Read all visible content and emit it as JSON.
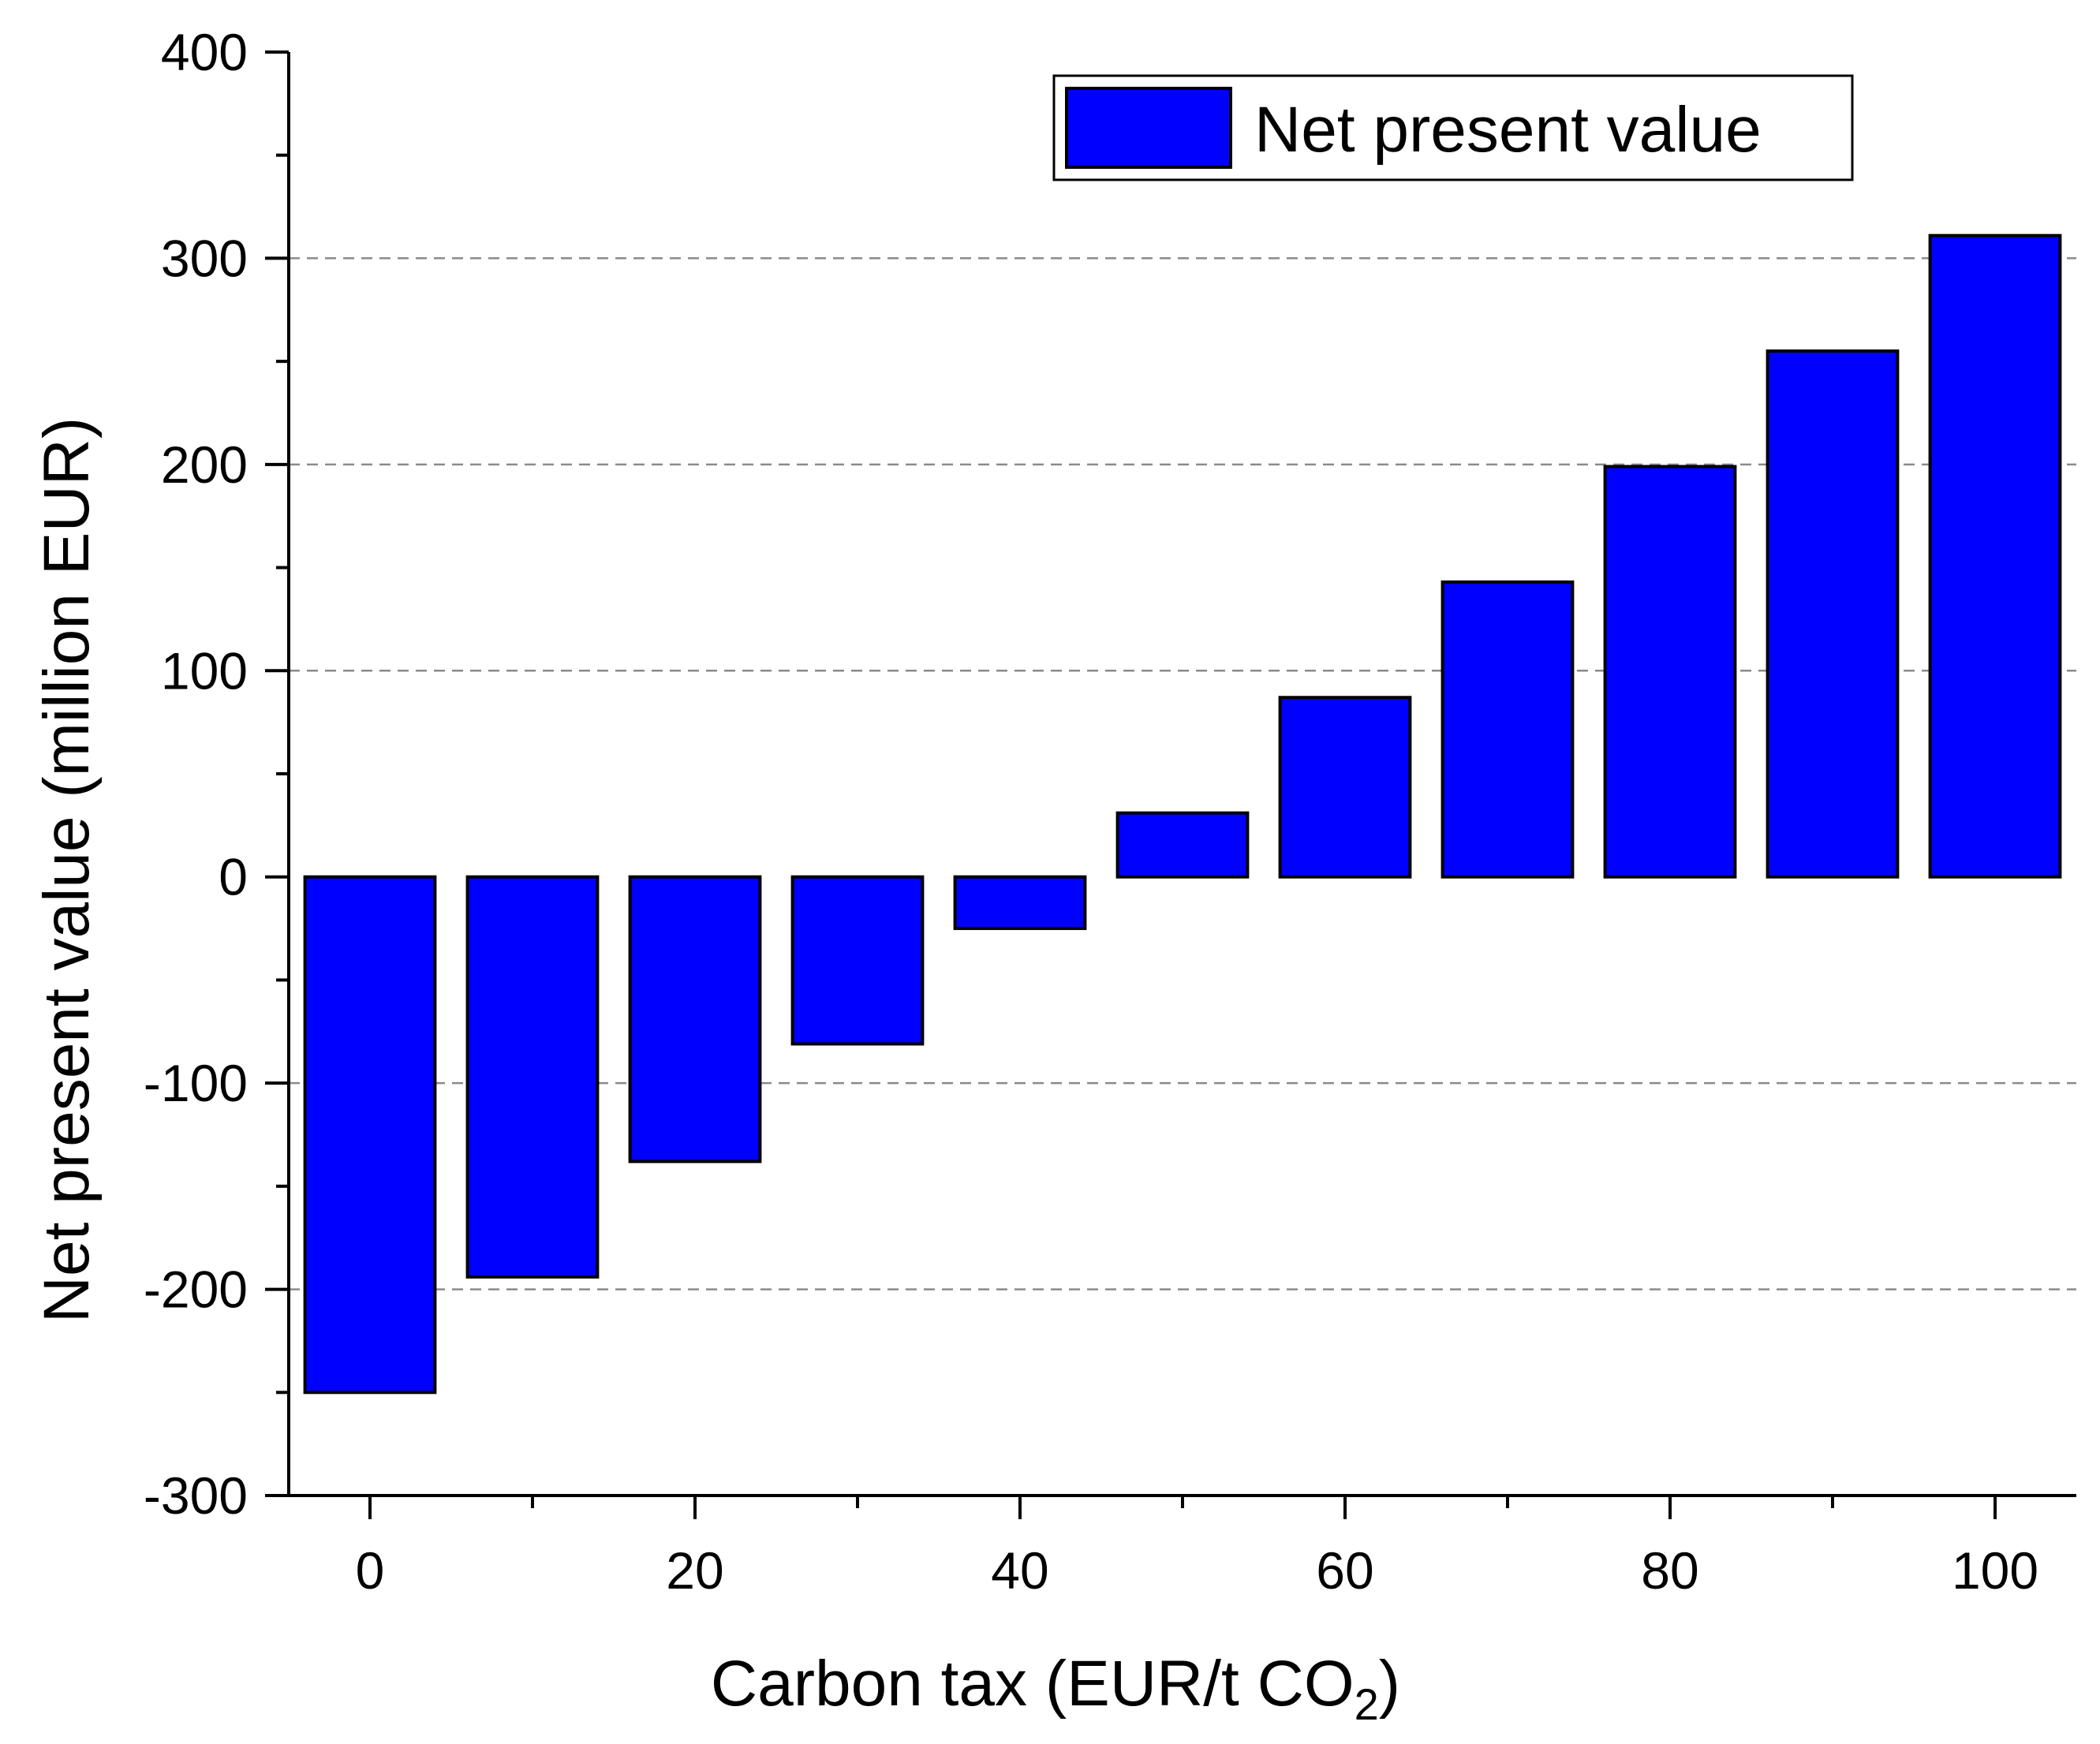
{
  "chart_data": {
    "type": "bar",
    "title": "",
    "xlabel": "Carbon tax (EUR/t CO",
    "xlabel_subscript": "2",
    "xlabel_suffix": ")",
    "ylabel": "Net present value (million EUR)",
    "x": [
      0,
      10,
      20,
      30,
      40,
      50,
      60,
      70,
      80,
      90,
      100
    ],
    "series": [
      {
        "name": "Net present value",
        "values": [
          -250,
          -194,
          -138,
          -81,
          -25,
          31,
          87,
          143,
          199,
          255,
          311
        ],
        "color": "#0000ff"
      }
    ],
    "xlim": [
      -5,
      105
    ],
    "ylim": [
      -300,
      400
    ],
    "x_ticks": [
      0,
      20,
      40,
      60,
      80,
      100
    ],
    "x_tick_labels": [
      "0",
      "20",
      "40",
      "60",
      "80",
      "100"
    ],
    "x_minor_ticks": [
      10,
      30,
      50,
      70,
      90
    ],
    "y_ticks": [
      -300,
      -200,
      -100,
      0,
      100,
      200,
      300,
      400
    ],
    "y_tick_labels": [
      "-300",
      "-200",
      "-100",
      "0",
      "100",
      "200",
      "300",
      "400"
    ],
    "gridlines_y": [
      -200,
      -100,
      100,
      200,
      300
    ],
    "grid": "horizontal dashed",
    "legend": {
      "position": "top-right",
      "label": "Net present value"
    }
  },
  "colors": {
    "bar_fill": "#0000ff",
    "bar_stroke": "#000000",
    "axis": "#000000",
    "grid": "#8a8a8a"
  }
}
